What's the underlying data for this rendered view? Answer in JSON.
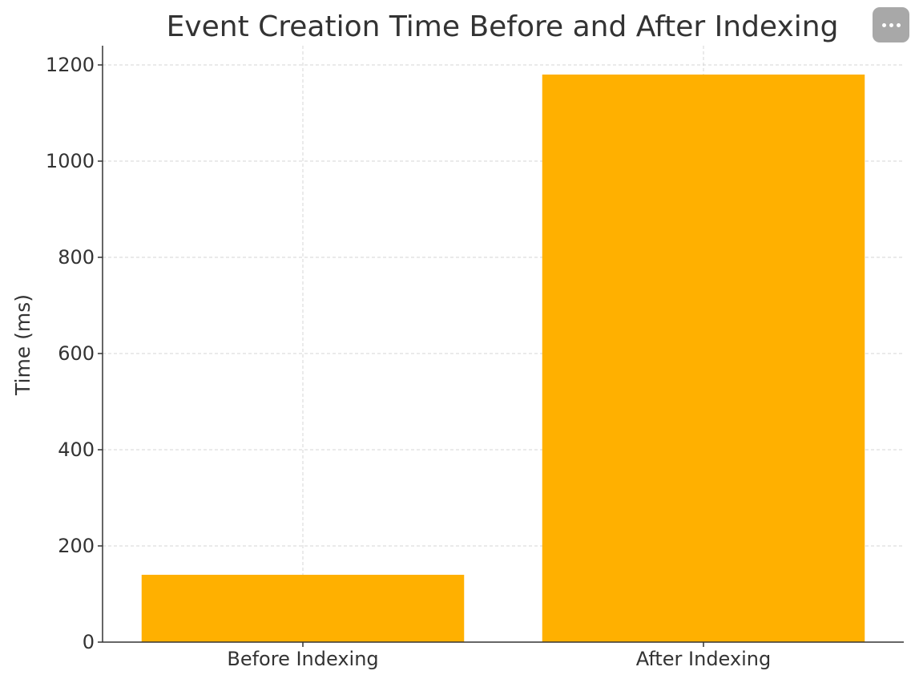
{
  "chart_data": {
    "type": "bar",
    "title": "Event Creation Time Before and After Indexing",
    "xlabel": "",
    "ylabel": "Time (ms)",
    "categories": [
      "Before Indexing",
      "After Indexing"
    ],
    "values": [
      140,
      1180
    ],
    "ylim": [
      0,
      1240
    ],
    "yticks": [
      0,
      200,
      400,
      600,
      800,
      1000,
      1200
    ],
    "grid": true,
    "bar_color": "#FFB000"
  },
  "menu": {
    "icon": "more-horizontal-icon"
  }
}
